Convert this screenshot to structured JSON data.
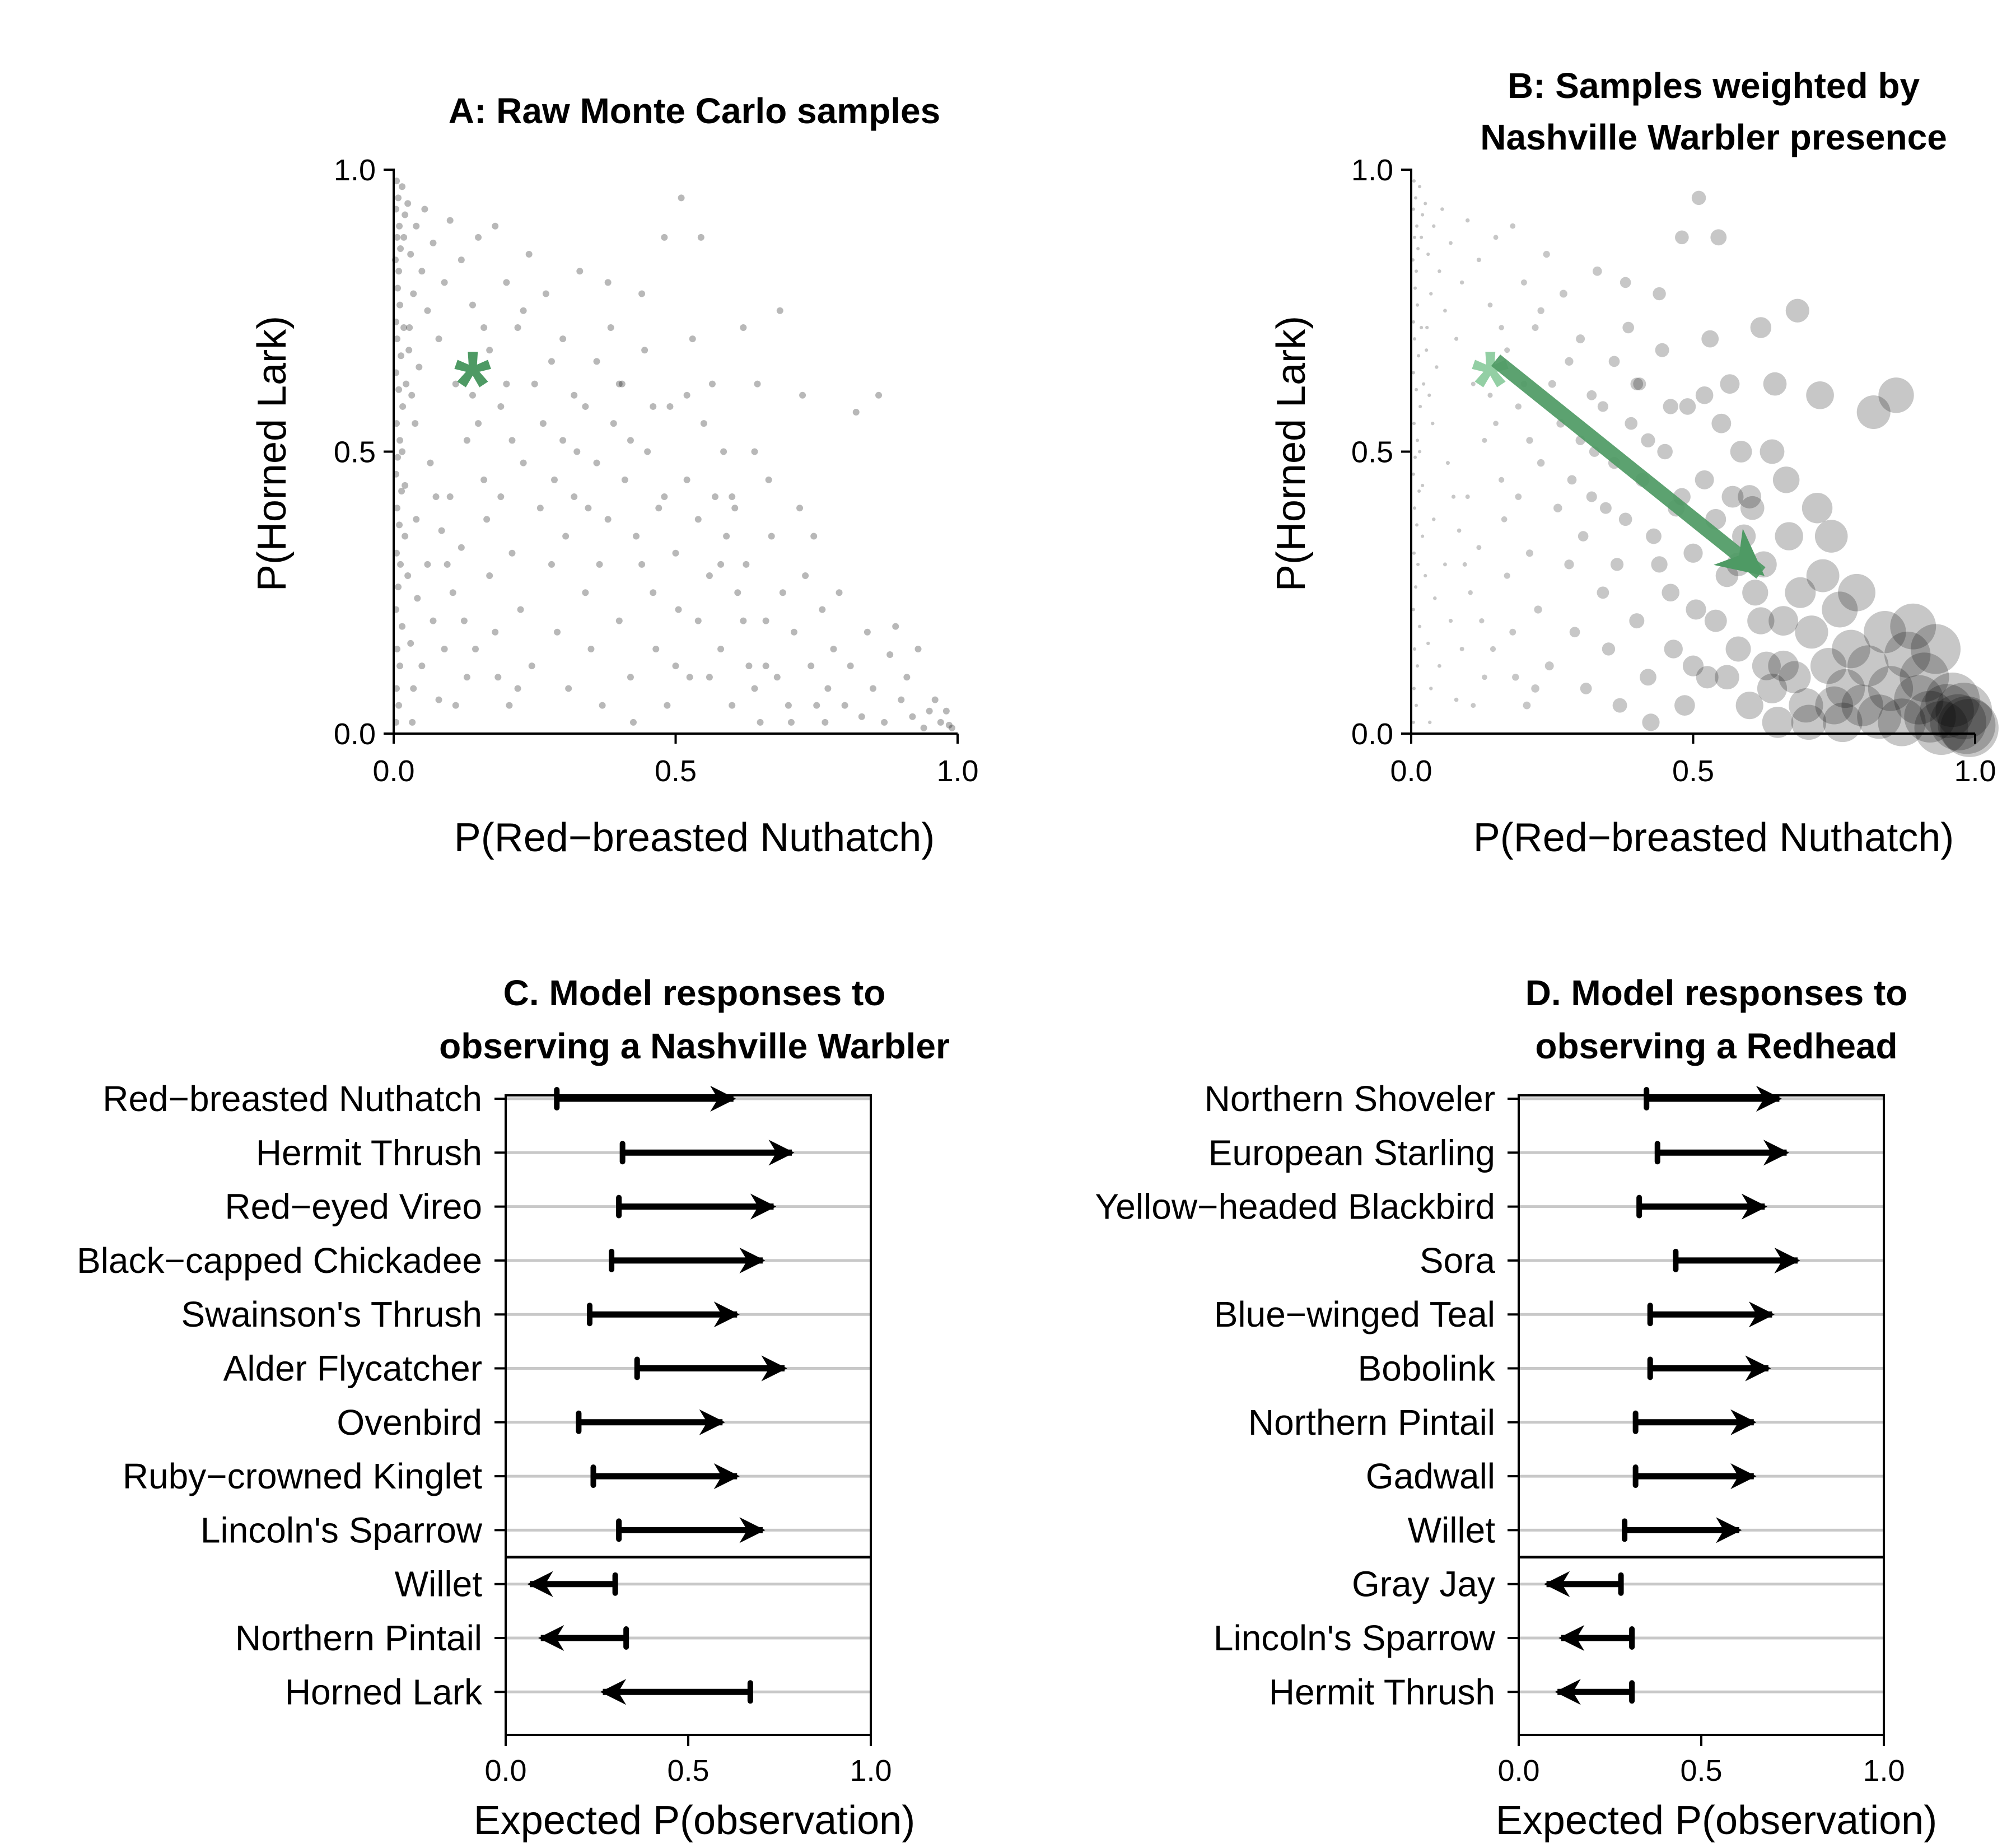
{
  "colors": {
    "sample_points": "#000000",
    "observation_marker": "#4e9a64",
    "observation_marker_faded": "#93cfa4",
    "arrow": "#000000",
    "gridline": "#c8c8c8"
  },
  "chart_data": [
    {
      "id": "A",
      "type": "scatter",
      "title": "A: Raw Monte Carlo samples",
      "xlabel": "P(Red−breasted Nuthatch)",
      "ylabel": "P(Horned Lark)",
      "xlim": [
        0,
        1
      ],
      "ylim": [
        0,
        1
      ],
      "xticks": [
        "0.0",
        "0.5",
        "1.0"
      ],
      "yticks": [
        "0.0",
        "0.5",
        "1.0"
      ],
      "grid": false,
      "point_style": "small translucent gray dots, dense near x = 0 and along the lower-left diagonal",
      "points": [
        [
          0.005,
          0.98
        ],
        [
          0.008,
          0.95
        ],
        [
          0.004,
          0.93
        ],
        [
          0.01,
          0.9
        ],
        [
          0.006,
          0.88
        ],
        [
          0.012,
          0.86
        ],
        [
          0.003,
          0.84
        ],
        [
          0.009,
          0.82
        ],
        [
          0.015,
          0.97
        ],
        [
          0.02,
          0.92
        ],
        [
          0.007,
          0.79
        ],
        [
          0.011,
          0.76
        ],
        [
          0.004,
          0.73
        ],
        [
          0.018,
          0.88
        ],
        [
          0.025,
          0.94
        ],
        [
          0.006,
          0.7
        ],
        [
          0.013,
          0.67
        ],
        [
          0.004,
          0.64
        ],
        [
          0.009,
          0.61
        ],
        [
          0.016,
          0.58
        ],
        [
          0.005,
          0.55
        ],
        [
          0.011,
          0.52
        ],
        [
          0.007,
          0.49
        ],
        [
          0.004,
          0.46
        ],
        [
          0.014,
          0.43
        ],
        [
          0.006,
          0.4
        ],
        [
          0.01,
          0.37
        ],
        [
          0.02,
          0.35
        ],
        [
          0.005,
          0.32
        ],
        [
          0.012,
          0.3
        ],
        [
          0.008,
          0.26
        ],
        [
          0.004,
          0.22
        ],
        [
          0.015,
          0.19
        ],
        [
          0.006,
          0.15
        ],
        [
          0.011,
          0.12
        ],
        [
          0.005,
          0.08
        ],
        [
          0.009,
          0.05
        ],
        [
          0.004,
          0.02
        ],
        [
          0.03,
          0.85
        ],
        [
          0.035,
          0.78
        ],
        [
          0.028,
          0.72
        ],
        [
          0.04,
          0.9
        ],
        [
          0.045,
          0.65
        ],
        [
          0.05,
          0.82
        ],
        [
          0.032,
          0.6
        ],
        [
          0.055,
          0.93
        ],
        [
          0.06,
          0.75
        ],
        [
          0.038,
          0.55
        ],
        [
          0.07,
          0.87
        ],
        [
          0.065,
          0.48
        ],
        [
          0.08,
          0.7
        ],
        [
          0.075,
          0.42
        ],
        [
          0.09,
          0.8
        ],
        [
          0.085,
          0.36
        ],
        [
          0.1,
          0.91
        ],
        [
          0.095,
          0.3
        ],
        [
          0.11,
          0.62
        ],
        [
          0.12,
          0.84
        ],
        [
          0.105,
          0.25
        ],
        [
          0.13,
          0.52
        ],
        [
          0.14,
          0.76
        ],
        [
          0.125,
          0.2
        ],
        [
          0.15,
          0.88
        ],
        [
          0.16,
          0.45
        ],
        [
          0.145,
          0.15
        ],
        [
          0.17,
          0.68
        ],
        [
          0.18,
          0.9
        ],
        [
          0.165,
          0.38
        ],
        [
          0.19,
          0.58
        ],
        [
          0.2,
          0.8
        ],
        [
          0.185,
          0.1
        ],
        [
          0.21,
          0.32
        ],
        [
          0.22,
          0.72
        ],
        [
          0.205,
          0.05
        ],
        [
          0.23,
          0.48
        ],
        [
          0.24,
          0.85
        ],
        [
          0.225,
          0.22
        ],
        [
          0.25,
          0.62
        ],
        [
          0.26,
          0.4
        ],
        [
          0.245,
          0.12
        ],
        [
          0.27,
          0.78
        ],
        [
          0.28,
          0.3
        ],
        [
          0.265,
          0.55
        ],
        [
          0.29,
          0.18
        ],
        [
          0.3,
          0.7
        ],
        [
          0.285,
          0.45
        ],
        [
          0.31,
          0.08
        ],
        [
          0.32,
          0.6
        ],
        [
          0.305,
          0.35
        ],
        [
          0.33,
          0.82
        ],
        [
          0.34,
          0.25
        ],
        [
          0.325,
          0.5
        ],
        [
          0.35,
          0.15
        ],
        [
          0.36,
          0.66
        ],
        [
          0.345,
          0.4
        ],
        [
          0.37,
          0.05
        ],
        [
          0.38,
          0.8
        ],
        [
          0.365,
          0.3
        ],
        [
          0.39,
          0.55
        ],
        [
          0.4,
          0.2
        ],
        [
          0.385,
          0.72
        ],
        [
          0.41,
          0.45
        ],
        [
          0.42,
          0.1
        ],
        [
          0.405,
          0.62
        ],
        [
          0.43,
          0.35
        ],
        [
          0.44,
          0.78
        ],
        [
          0.425,
          0.02
        ],
        [
          0.45,
          0.5
        ],
        [
          0.46,
          0.25
        ],
        [
          0.445,
          0.68
        ],
        [
          0.47,
          0.4
        ],
        [
          0.48,
          0.88
        ],
        [
          0.465,
          0.15
        ],
        [
          0.49,
          0.58
        ],
        [
          0.5,
          0.32
        ],
        [
          0.485,
          0.05
        ],
        [
          0.51,
          0.95
        ],
        [
          0.52,
          0.45
        ],
        [
          0.505,
          0.22
        ],
        [
          0.53,
          0.7
        ],
        [
          0.54,
          0.38
        ],
        [
          0.525,
          0.1
        ],
        [
          0.55,
          0.55
        ],
        [
          0.56,
          0.28
        ],
        [
          0.545,
          0.88
        ],
        [
          0.57,
          0.42
        ],
        [
          0.58,
          0.15
        ],
        [
          0.565,
          0.62
        ],
        [
          0.59,
          0.35
        ],
        [
          0.6,
          0.05
        ],
        [
          0.585,
          0.5
        ],
        [
          0.61,
          0.25
        ],
        [
          0.62,
          0.72
        ],
        [
          0.605,
          0.4
        ],
        [
          0.63,
          0.12
        ],
        [
          0.64,
          0.5
        ],
        [
          0.625,
          0.3
        ],
        [
          0.65,
          0.02
        ],
        [
          0.66,
          0.2
        ],
        [
          0.645,
          0.62
        ],
        [
          0.67,
          0.35
        ],
        [
          0.68,
          0.1
        ],
        [
          0.665,
          0.45
        ],
        [
          0.69,
          0.25
        ],
        [
          0.7,
          0.05
        ],
        [
          0.685,
          0.75
        ],
        [
          0.71,
          0.18
        ],
        [
          0.72,
          0.4
        ],
        [
          0.705,
          0.02
        ],
        [
          0.73,
          0.28
        ],
        [
          0.74,
          0.12
        ],
        [
          0.725,
          0.6
        ],
        [
          0.75,
          0.05
        ],
        [
          0.76,
          0.22
        ],
        [
          0.745,
          0.35
        ],
        [
          0.77,
          0.08
        ],
        [
          0.78,
          0.15
        ],
        [
          0.765,
          0.02
        ],
        [
          0.79,
          0.25
        ],
        [
          0.8,
          0.05
        ],
        [
          0.82,
          0.57
        ],
        [
          0.81,
          0.12
        ],
        [
          0.83,
          0.03
        ],
        [
          0.84,
          0.18
        ],
        [
          0.86,
          0.6
        ],
        [
          0.85,
          0.08
        ],
        [
          0.87,
          0.02
        ],
        [
          0.88,
          0.14
        ],
        [
          0.9,
          0.06
        ],
        [
          0.89,
          0.19
        ],
        [
          0.92,
          0.03
        ],
        [
          0.91,
          0.1
        ],
        [
          0.93,
          0.15
        ],
        [
          0.95,
          0.04
        ],
        [
          0.94,
          0.01
        ],
        [
          0.96,
          0.06
        ],
        [
          0.97,
          0.02
        ],
        [
          0.98,
          0.04
        ],
        [
          0.99,
          0.01
        ],
        [
          0.985,
          0.015
        ],
        [
          0.06,
          0.3
        ],
        [
          0.07,
          0.2
        ],
        [
          0.05,
          0.12
        ],
        [
          0.08,
          0.06
        ],
        [
          0.04,
          0.38
        ],
        [
          0.09,
          0.15
        ],
        [
          0.1,
          0.42
        ],
        [
          0.11,
          0.05
        ],
        [
          0.12,
          0.33
        ],
        [
          0.13,
          0.1
        ],
        [
          0.02,
          0.44
        ],
        [
          0.025,
          0.28
        ],
        [
          0.03,
          0.16
        ],
        [
          0.035,
          0.08
        ],
        [
          0.015,
          0.5
        ],
        [
          0.022,
          0.62
        ],
        [
          0.018,
          0.72
        ],
        [
          0.027,
          0.68
        ],
        [
          0.033,
          0.02
        ],
        [
          0.042,
          0.24
        ],
        [
          0.2,
          0.62
        ],
        [
          0.23,
          0.75
        ],
        [
          0.15,
          0.55
        ],
        [
          0.17,
          0.28
        ],
        [
          0.19,
          0.42
        ],
        [
          0.14,
          0.6
        ],
        [
          0.16,
          0.72
        ],
        [
          0.21,
          0.52
        ],
        [
          0.18,
          0.18
        ],
        [
          0.22,
          0.08
        ],
        [
          0.28,
          0.66
        ],
        [
          0.3,
          0.52
        ],
        [
          0.32,
          0.42
        ],
        [
          0.34,
          0.58
        ],
        [
          0.36,
          0.48
        ],
        [
          0.38,
          0.38
        ],
        [
          0.4,
          0.62
        ],
        [
          0.42,
          0.52
        ],
        [
          0.44,
          0.3
        ],
        [
          0.46,
          0.58
        ],
        [
          0.48,
          0.42
        ],
        [
          0.5,
          0.12
        ],
        [
          0.52,
          0.6
        ],
        [
          0.54,
          0.2
        ],
        [
          0.56,
          0.1
        ],
        [
          0.58,
          0.3
        ],
        [
          0.6,
          0.42
        ],
        [
          0.62,
          0.2
        ],
        [
          0.64,
          0.08
        ],
        [
          0.66,
          0.12
        ]
      ],
      "marker": {
        "symbol": "*",
        "x": 0.14,
        "y": 0.67,
        "color": "#4e9a64"
      }
    },
    {
      "id": "B",
      "type": "scatter",
      "title": "B: Samples weighted by\nNashville Warbler presence",
      "xlabel": "P(Red−breasted Nuthatch)",
      "ylabel": "P(Horned Lark)",
      "xlim": [
        0,
        1
      ],
      "ylim": [
        0,
        1
      ],
      "xticks": [
        "0.0",
        "0.5",
        "1.0"
      ],
      "yticks": [
        "0.0",
        "0.5",
        "1.0"
      ],
      "grid": false,
      "point_style": "same samples, point size proportional to weight (larger toward high x)",
      "marker": {
        "symbol": "*",
        "x": 0.14,
        "y": 0.67,
        "color": "#93cfa4"
      },
      "arrow": {
        "from": [
          0.14,
          0.67
        ],
        "to": [
          0.64,
          0.27
        ],
        "color": "#4e9a64"
      }
    },
    {
      "id": "C",
      "type": "arrow",
      "title": "C. Model responses to\nobserving a Nashville Warbler",
      "xlabel": "Expected P(observation)",
      "xlim": [
        0,
        1
      ],
      "xticks": [
        "0.0",
        "0.5",
        "1.0"
      ],
      "categories": [
        "Red−breasted Nuthatch",
        "Hermit Thrush",
        "Red−eyed Vireo",
        "Black−capped Chickadee",
        "Swainson's Thrush",
        "Alder Flycatcher",
        "Ovenbird",
        "Ruby−crowned Kinglet",
        "Lincoln's Sparrow",
        "Willet",
        "Northern Pintail",
        "Horned Lark"
      ],
      "divider_after": 9,
      "series": [
        {
          "name": "",
          "from": [
            0.14,
            0.32,
            0.31,
            0.29,
            0.23,
            0.36,
            0.2,
            0.24,
            0.31,
            0.3,
            0.33,
            0.67
          ],
          "to": [
            0.63,
            0.79,
            0.74,
            0.71,
            0.64,
            0.77,
            0.6,
            0.64,
            0.71,
            0.06,
            0.09,
            0.26
          ]
        }
      ]
    },
    {
      "id": "D",
      "type": "arrow",
      "title": "D. Model responses to\nobserving a Redhead",
      "xlabel": "Expected P(observation)",
      "xlim": [
        0,
        1
      ],
      "xticks": [
        "0.0",
        "0.5",
        "1.0"
      ],
      "categories": [
        "Northern Shoveler",
        "European Starling",
        "Yellow−headed Blackbird",
        "Sora",
        "Blue−winged Teal",
        "Bobolink",
        "Northern Pintail",
        "Gadwall",
        "Willet",
        "Gray Jay",
        "Lincoln's Sparrow",
        "Hermit Thrush"
      ],
      "divider_after": 9,
      "series": [
        {
          "name": "",
          "from": [
            0.35,
            0.38,
            0.33,
            0.43,
            0.36,
            0.36,
            0.32,
            0.32,
            0.29,
            0.28,
            0.31,
            0.31
          ],
          "to": [
            0.72,
            0.74,
            0.68,
            0.77,
            0.7,
            0.69,
            0.65,
            0.65,
            0.61,
            0.07,
            0.11,
            0.1
          ]
        }
      ]
    }
  ]
}
